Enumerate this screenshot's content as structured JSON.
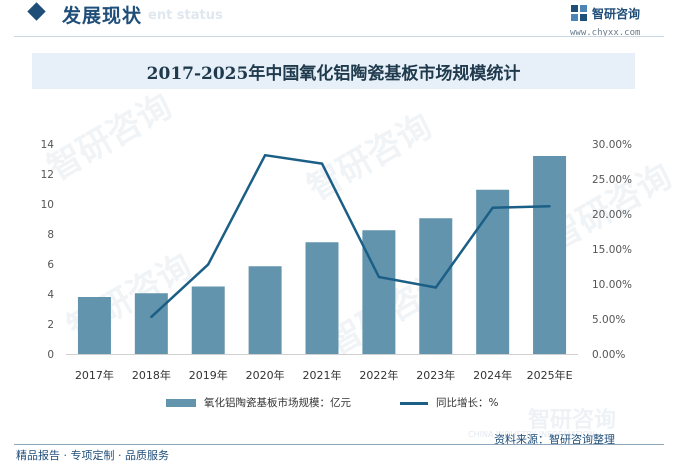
{
  "header": {
    "section_title": "发展现状",
    "section_subtitle": "ent status",
    "logo_name": "智研咨询",
    "logo_url": "www.chyxx.com"
  },
  "watermark_text": "智研咨询",
  "chart_data": {
    "type": "bar",
    "title": "2017-2025年中国氧化铝陶瓷基板市场规模统计",
    "categories": [
      "2017年",
      "2018年",
      "2019年",
      "2020年",
      "2021年",
      "2022年",
      "2023年",
      "2024年",
      "2025年E"
    ],
    "series": [
      {
        "name": "氧化铝陶瓷基板市场规模：亿元",
        "type": "bar",
        "axis": "left",
        "color": "#6294ad",
        "values": [
          3.8,
          4.05,
          4.5,
          5.85,
          7.45,
          8.25,
          9.05,
          10.95,
          13.2
        ]
      },
      {
        "name": "同比增长：%",
        "type": "line",
        "axis": "right",
        "color": "#1b5f86",
        "values": [
          null,
          5.3,
          12.8,
          28.4,
          27.2,
          11.0,
          9.5,
          20.9,
          21.1
        ]
      }
    ],
    "ylim_left": [
      0,
      14
    ],
    "left_ticks": [
      "0",
      "2",
      "4",
      "6",
      "8",
      "10",
      "12",
      "14"
    ],
    "ylim_right": [
      0,
      30
    ],
    "right_ticks": [
      "0.00%",
      "5.00%",
      "10.00%",
      "15.00%",
      "20.00%",
      "25.00%",
      "30.00%"
    ],
    "grid": false,
    "legend_position": "bottom"
  },
  "footer": {
    "tagline": "精品报告 · 专项定制 · 品质服务",
    "source": "资料来源：智研咨询整理",
    "brand_watermark": "智研咨询",
    "brand_watermark_en": "CHINA INDUSTRY INFORMATION"
  }
}
